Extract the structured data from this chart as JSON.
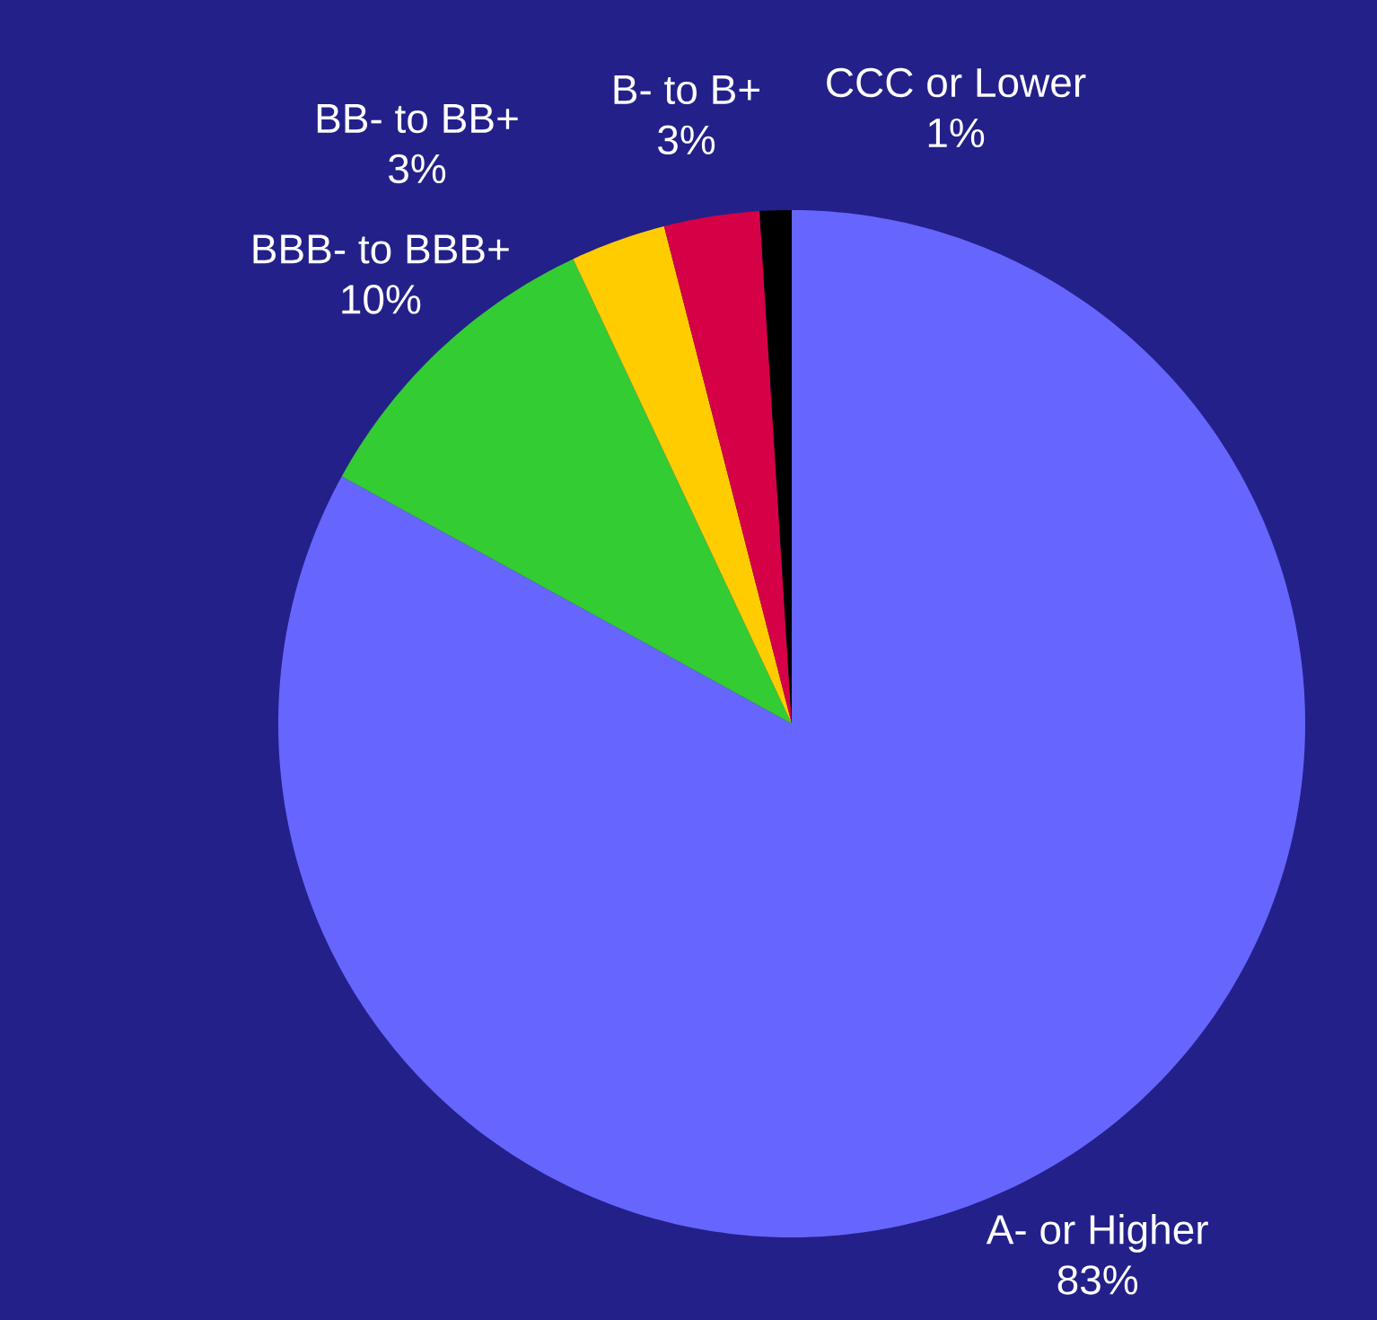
{
  "chart_data": {
    "type": "pie",
    "categories": [
      "A- or Higher",
      "BBB- to BBB+",
      "BB- to BB+",
      "B- to B+",
      "CCC or Lower"
    ],
    "values": [
      83,
      10,
      3,
      3,
      1
    ],
    "colors": [
      "#6666ff",
      "#33cc33",
      "#ffcc00",
      "#d60047",
      "#000000"
    ],
    "value_labels": [
      "83%",
      "10%",
      "3%",
      "3%",
      "1%"
    ]
  }
}
